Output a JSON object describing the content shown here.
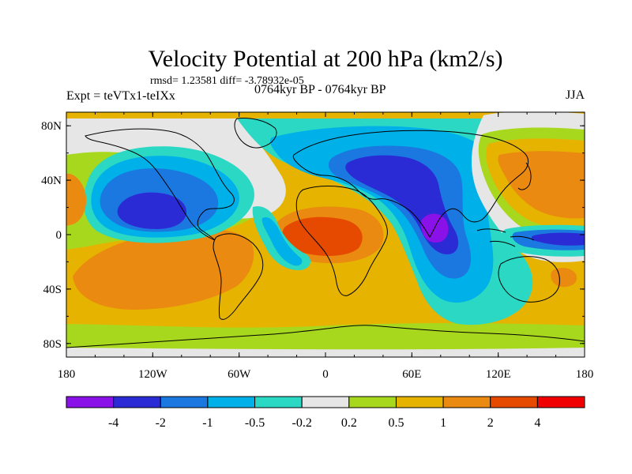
{
  "title": "Velocity Potential at 200 hPa (km2/s)",
  "stats": "rmsd= 1.23581 diff= -3.78932e-05",
  "left_label": "Expt = teVTx1-teIXx",
  "center_label": "0764kyr BP - 0764kyr BP",
  "season": "JJA",
  "map": {
    "projection": "cylindrical equidistant",
    "lon_range": [
      -180,
      180
    ],
    "lat_range": [
      -90,
      90
    ],
    "lon_ticks": [
      "180",
      "120W",
      "60W",
      "0",
      "60E",
      "120E",
      "180"
    ],
    "lat_ticks": [
      "80N",
      "40N",
      "0",
      "40S",
      "80S"
    ]
  },
  "colorbar": {
    "labels": [
      "-4",
      "-2",
      "-1",
      "-0.5",
      "-0.2",
      "0.2",
      "0.5",
      "1",
      "2",
      "4"
    ],
    "colors": [
      "#8a12e8",
      "#2b2bd6",
      "#1a78e0",
      "#00b0e8",
      "#2ad8c4",
      "#e6e6e6",
      "#a8d81e",
      "#e6b400",
      "#ea8a10",
      "#e64a00",
      "#f00000"
    ]
  }
}
